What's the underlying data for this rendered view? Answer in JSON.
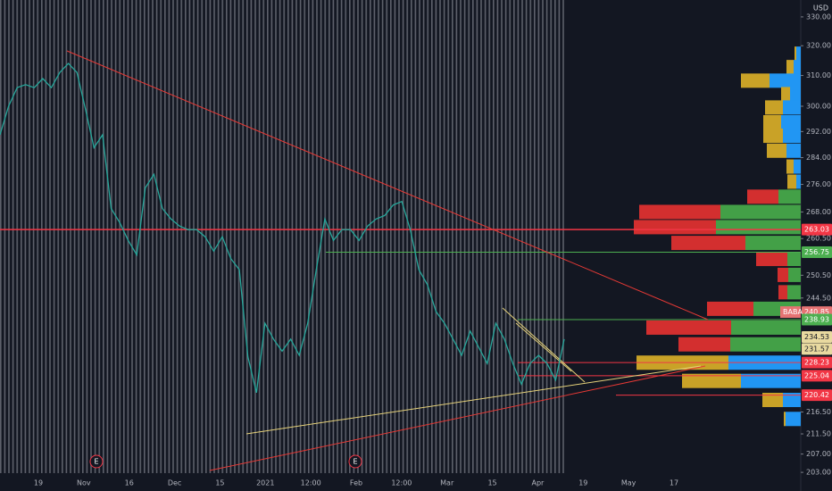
{
  "chart_data": {
    "type": "line",
    "currency": "USD",
    "symbol": "BABA",
    "yscale": "log",
    "ylim": [
      199,
      336
    ],
    "yticks": [
      {
        "value": 330,
        "label": "330.00"
      },
      {
        "value": 320,
        "label": "320.00"
      },
      {
        "value": 310,
        "label": "310.00"
      },
      {
        "value": 300,
        "label": "300.00"
      },
      {
        "value": 292,
        "label": "292.00"
      },
      {
        "value": 284,
        "label": "284.00"
      },
      {
        "value": 276,
        "label": "276.00"
      },
      {
        "value": 268,
        "label": "268.00"
      },
      {
        "value": 260.5,
        "label": "260.50"
      },
      {
        "value": 250.5,
        "label": "250.50"
      },
      {
        "value": 244.5,
        "label": "244.50"
      },
      {
        "value": 216.5,
        "label": "216.50"
      },
      {
        "value": 211.5,
        "label": "211.50"
      },
      {
        "value": 207,
        "label": "207.00"
      },
      {
        "value": 203,
        "label": "203.00"
      }
    ],
    "xticks": [
      "19",
      "Nov",
      "16",
      "Dec",
      "15",
      "2021",
      "12:00",
      "Feb",
      "12:00",
      "Mar",
      "15",
      "Apr",
      "19",
      "May",
      "17"
    ],
    "series": [
      {
        "color": "#26a69a",
        "values": [
          291,
          300,
          306,
          307,
          306,
          309,
          306,
          311,
          314,
          311,
          299,
          287,
          291,
          269,
          265,
          260,
          256,
          275,
          279,
          269,
          266,
          264,
          263,
          263,
          261,
          257,
          261,
          255,
          252,
          229.6,
          221,
          238,
          234,
          231,
          234,
          230,
          238,
          252,
          266,
          260,
          263,
          263,
          260,
          264,
          266,
          267,
          270,
          271,
          263,
          252,
          248,
          241,
          238,
          234,
          230,
          236,
          232,
          228,
          238,
          234,
          228,
          223,
          228,
          230,
          228,
          224,
          234
        ]
      }
    ],
    "volume_profile": [
      {
        "price": 317.3,
        "up": 5,
        "down": 2,
        "colors": [
          "#2196f3",
          "#c9a227"
        ]
      },
      {
        "price": 312.8,
        "up": 8,
        "down": 8,
        "colors": [
          "#2196f3",
          "#c9a227"
        ]
      },
      {
        "price": 308.3,
        "up": 35,
        "down": 32,
        "colors": [
          "#2196f3",
          "#c9a227"
        ]
      },
      {
        "price": 303.9,
        "up": 12,
        "down": 10,
        "colors": [
          "#2196f3",
          "#c9a227"
        ]
      },
      {
        "price": 299.6,
        "up": 20,
        "down": 20,
        "colors": [
          "#2196f3",
          "#c9a227"
        ]
      },
      {
        "price": 294.9,
        "up": 22,
        "down": 20,
        "colors": [
          "#2196f3",
          "#c9a227"
        ]
      },
      {
        "price": 290.7,
        "up": 20,
        "down": 22,
        "colors": [
          "#2196f3",
          "#c9a227"
        ]
      },
      {
        "price": 286.1,
        "up": 16,
        "down": 22,
        "colors": [
          "#2196f3",
          "#c9a227"
        ]
      },
      {
        "price": 281.3,
        "up": 8,
        "down": 8,
        "colors": [
          "#2196f3",
          "#c9a227"
        ]
      },
      {
        "price": 276.8,
        "up": 5,
        "down": 10,
        "colors": [
          "#2196f3",
          "#c9a227"
        ]
      },
      {
        "price": 272.4,
        "up": 25,
        "down": 35,
        "colors": [
          "#43a047",
          "#d32f2f"
        ]
      },
      {
        "price": 268.0,
        "up": 90,
        "down": 91,
        "colors": [
          "#43a047",
          "#d32f2f"
        ]
      },
      {
        "price": 263.7,
        "up": 95,
        "down": 92,
        "colors": [
          "#43a047",
          "#d32f2f"
        ]
      },
      {
        "price": 259.3,
        "up": 62,
        "down": 83,
        "colors": [
          "#43a047",
          "#d32f2f"
        ]
      },
      {
        "price": 254.9,
        "up": 15,
        "down": 35,
        "colors": [
          "#43a047",
          "#d32f2f"
        ]
      },
      {
        "price": 250.6,
        "up": 14,
        "down": 12,
        "colors": [
          "#43a047",
          "#d32f2f"
        ]
      },
      {
        "price": 246.0,
        "up": 15,
        "down": 10,
        "colors": [
          "#43a047",
          "#d32f2f"
        ]
      },
      {
        "price": 241.7,
        "up": 53,
        "down": 52,
        "colors": [
          "#43a047",
          "#d32f2f"
        ]
      },
      {
        "price": 236.9,
        "up": 78,
        "down": 95,
        "colors": [
          "#43a047",
          "#d32f2f"
        ]
      },
      {
        "price": 232.7,
        "up": 79,
        "down": 58,
        "colors": [
          "#43a047",
          "#d32f2f"
        ]
      },
      {
        "price": 228.2,
        "up": 81,
        "down": 103,
        "colors": [
          "#2196f3",
          "#c9a227"
        ]
      },
      {
        "price": 223.8,
        "up": 67,
        "down": 66,
        "colors": [
          "#2196f3",
          "#c9a227"
        ]
      },
      {
        "price": 219.3,
        "up": 20,
        "down": 23,
        "colors": [
          "#2196f3",
          "#c9a227"
        ]
      },
      {
        "price": 214.9,
        "up": 17,
        "down": 2,
        "colors": [
          "#2196f3",
          "#c9a227"
        ]
      }
    ],
    "price_labels": [
      {
        "value": 263.03,
        "label": "263.03",
        "color": "#f23645"
      },
      {
        "value": 256.75,
        "label": "256.75",
        "color": "#4caf50"
      },
      {
        "value": 240.85,
        "label": "240.85",
        "color": "#e57373"
      },
      {
        "value": 238.93,
        "label": "238.93",
        "color": "#4caf50"
      },
      {
        "value": 234.53,
        "label": "234.53",
        "color": "#e8d9a0"
      },
      {
        "value": 231.57,
        "label": "231.57",
        "color": "#e8d9a0"
      },
      {
        "value": 228.23,
        "label": "228.23",
        "color": "#f23645"
      },
      {
        "value": 225.04,
        "label": "225.04",
        "color": "#f23645"
      },
      {
        "value": 220.42,
        "label": "220.42",
        "color": "#f23645"
      }
    ],
    "events": [
      "E",
      "E"
    ]
  }
}
